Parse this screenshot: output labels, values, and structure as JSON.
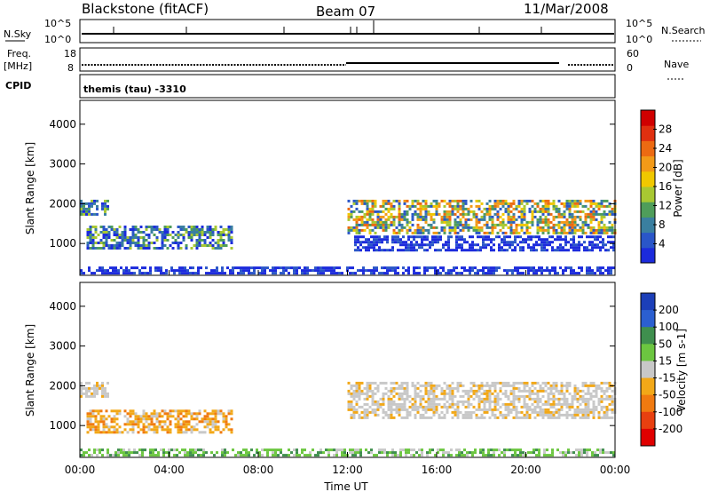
{
  "header": {
    "station": "Blackstone (fitACF)",
    "beam": "Beam 07",
    "date": "11/Mar/2008"
  },
  "labels": {
    "nsky": "N.Sky",
    "nsearch": "N.Search",
    "freq": "Freq.",
    "mhz": "[MHz]",
    "nave": "Nave",
    "cpid": "CPID",
    "cpid_value": "themis (tau) -3310",
    "pow_10_5": "10^5",
    "pow_10_0": "10^0",
    "freq_hi": "18",
    "freq_lo": "8",
    "nave_hi": "60",
    "nave_lo": "0"
  },
  "chart_data": [
    {
      "type": "heatmap",
      "title": "Power",
      "ylabel": "Slant Range [km]",
      "yticks": [
        1000,
        2000,
        3000,
        4000
      ],
      "ylim": [
        200,
        4600
      ],
      "colorbar": {
        "label": "Power [dB]",
        "ticks": [
          "4",
          "8",
          "12",
          "16",
          "20",
          "24",
          "28"
        ],
        "colors": [
          "#1c2bdc",
          "#2a56c8",
          "#3a7fa0",
          "#4f9d5a",
          "#a8c832",
          "#f0c800",
          "#f29a18",
          "#ec6a12",
          "#e03010",
          "#d00000"
        ]
      },
      "regions": [
        {
          "t0": 0.0,
          "t1": 1.2,
          "r0": 1700,
          "r1": 2100,
          "level": "low-mid"
        },
        {
          "t0": 0.3,
          "t1": 6.8,
          "r0": 900,
          "r1": 1450,
          "level": "low-mid"
        },
        {
          "t0": 0.0,
          "t1": 24.0,
          "r0": 250,
          "r1": 420,
          "level": "low"
        },
        {
          "t0": 12.0,
          "t1": 24.0,
          "r0": 1250,
          "r1": 2100,
          "level": "mid-high"
        },
        {
          "t0": 12.3,
          "t1": 24.0,
          "r0": 850,
          "r1": 1200,
          "level": "low"
        }
      ]
    },
    {
      "type": "heatmap",
      "title": "Velocity",
      "ylabel": "Slant Range [km]",
      "xlabel": "Time UT",
      "xticks": [
        "00:00",
        "04:00",
        "08:00",
        "12:00",
        "16:00",
        "20:00",
        "00:00"
      ],
      "yticks": [
        1000,
        2000,
        3000,
        4000
      ],
      "ylim": [
        200,
        4600
      ],
      "colorbar": {
        "label": "Velocity [m s-1]",
        "ticks": [
          "200",
          "100",
          "50",
          "15",
          "-15",
          "-50",
          "-100",
          "-200"
        ],
        "colors": [
          "#1c3fb8",
          "#2b5fd0",
          "#3f8f4e",
          "#6cc640",
          "#c8c8c8",
          "#f2a818",
          "#f07a10",
          "#e84010",
          "#e00000"
        ]
      },
      "regions": [
        {
          "t0": 0.0,
          "t1": 1.2,
          "r0": 1700,
          "r1": 2100,
          "level": "grey"
        },
        {
          "t0": 0.3,
          "t1": 6.8,
          "r0": 850,
          "r1": 1400,
          "level": "orange"
        },
        {
          "t0": 0.0,
          "t1": 24.0,
          "r0": 230,
          "r1": 420,
          "level": "green"
        },
        {
          "t0": 12.0,
          "t1": 24.0,
          "r0": 1200,
          "r1": 2100,
          "level": "grey"
        }
      ]
    }
  ]
}
